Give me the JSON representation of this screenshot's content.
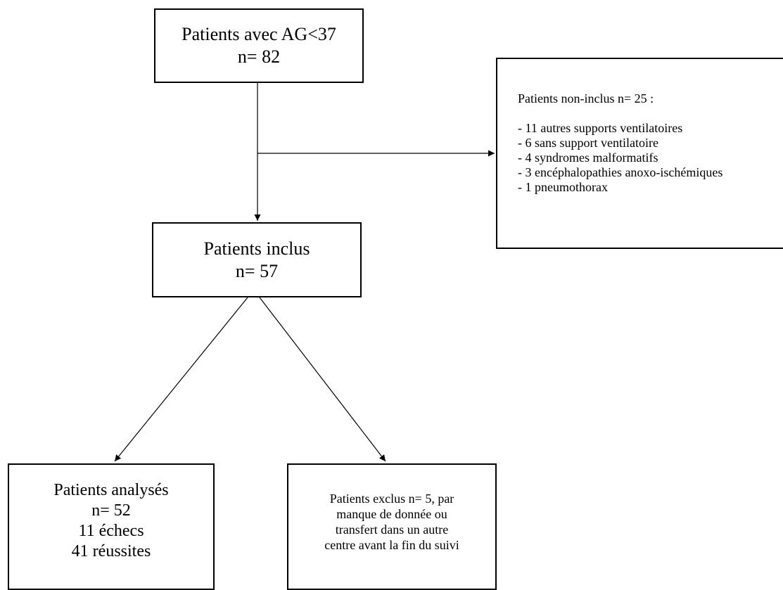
{
  "start": {
    "line1": "Patients avec AG<37",
    "line2": "n= 82"
  },
  "non_included": {
    "title": "Patients non-inclus n= 25 :",
    "items": [
      "- 11 autres supports ventilatoires",
      "- 6 sans support ventilatoire",
      "- 4 syndromes malformatifs",
      "- 3 encéphalopathies anoxo-ischémiques",
      "- 1 pneumothorax"
    ]
  },
  "included": {
    "line1": "Patients inclus",
    "line2": "n= 57"
  },
  "analysed": {
    "line1": "Patients analysés",
    "line2": "n= 52",
    "line3": "11 échecs",
    "line4": "41 réussites"
  },
  "excluded": {
    "lines": [
      "Patients exclus n= 5, par",
      "manque de donnée ou",
      "transfert dans un autre",
      "centre avant la fin du suivi"
    ]
  }
}
